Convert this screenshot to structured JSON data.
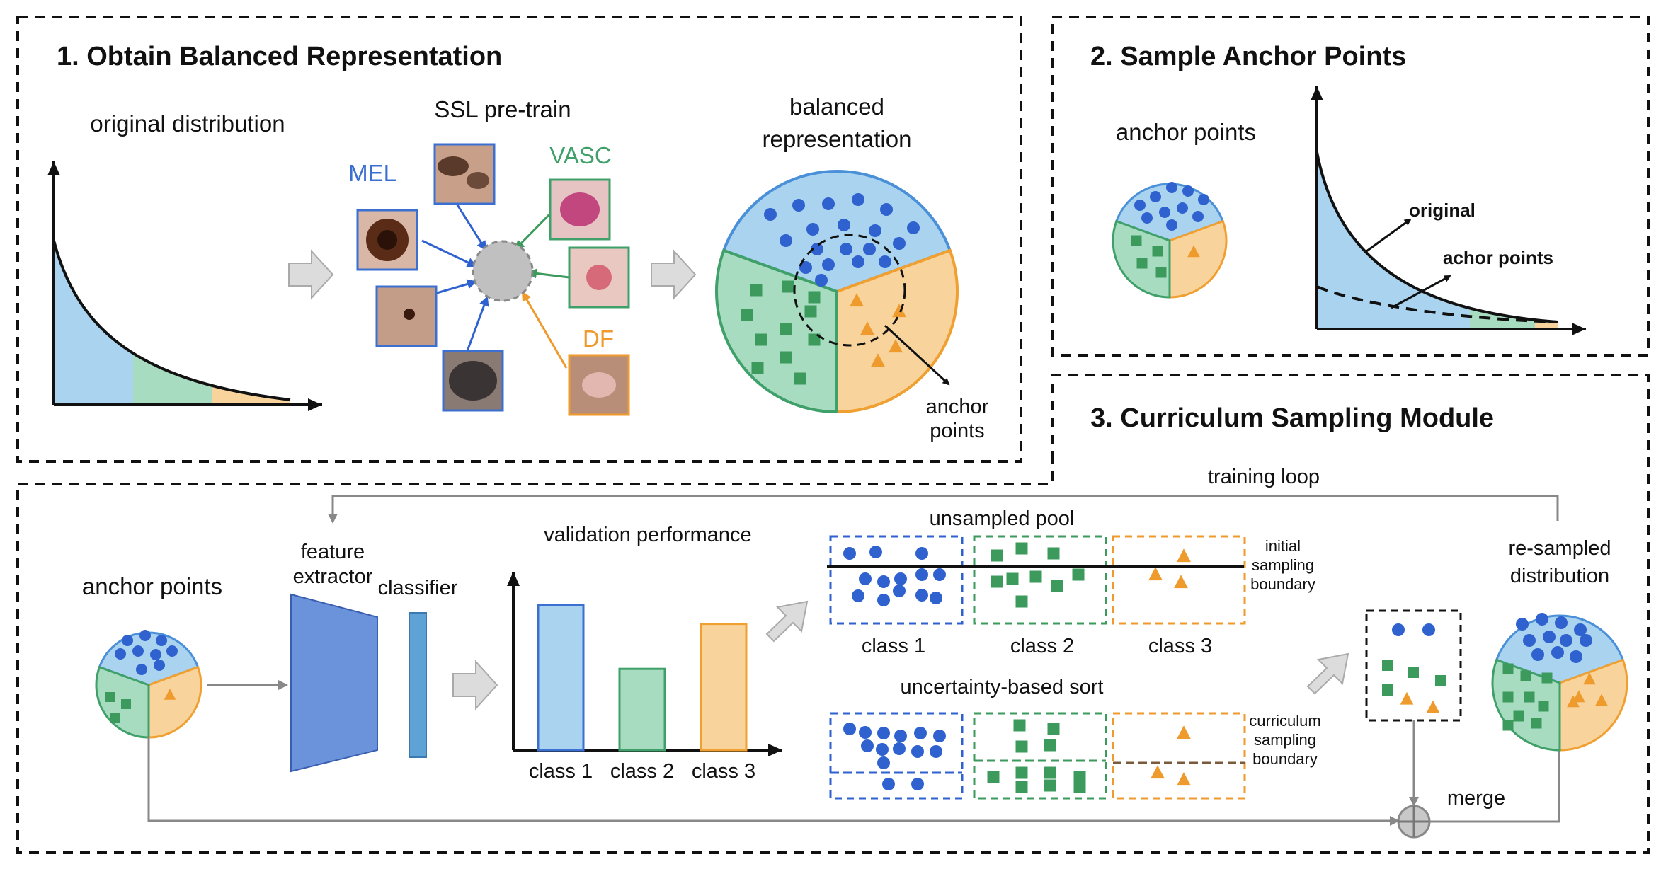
{
  "panel1": {
    "title": "1. Obtain Balanced Representation",
    "original_distribution": "original distribution",
    "ssl_pretrain": "SSL pre-train",
    "class_mel": "MEL",
    "class_vasc": "VASC",
    "class_df": "DF",
    "balanced_line1": "balanced",
    "balanced_line2": "representation",
    "anchor_line1": "anchor",
    "anchor_line2": "points"
  },
  "panel2": {
    "title": "2. Sample Anchor Points",
    "anchor_points": "anchor points",
    "original": "original",
    "achor_points": "achor points"
  },
  "panel3": {
    "title": "3. Curriculum Sampling Module",
    "training_loop": "training loop",
    "anchor_points": "anchor points",
    "feature_line1": "feature",
    "feature_line2": "extractor",
    "classifier": "classifier",
    "validation_performance": "validation performance",
    "bar_chart": {
      "categories": [
        "class 1",
        "class 2",
        "class 3"
      ],
      "values": [
        100,
        56,
        87
      ],
      "colors": [
        "#a9d3ee",
        "#a8dcc0",
        "#f8d39c"
      ],
      "edge_colors": [
        "#3b6fd0",
        "#3fa06a",
        "#f0a030"
      ]
    },
    "unsampled_pool": "unsampled pool",
    "initial_line1": "initial",
    "initial_line2": "sampling",
    "initial_line3": "boundary",
    "pool_labels": [
      "class 1",
      "class 2",
      "class 3"
    ],
    "uncertainty_sort": "uncertainty-based sort",
    "curr_line1": "curriculum",
    "curr_line2": "sampling",
    "curr_line3": "boundary",
    "merge": "merge",
    "resampled_line1": "re-sampled",
    "resampled_line2": "distribution"
  },
  "colors": {
    "blue_dot": "#2f62cf",
    "green_square": "#3c9a5c",
    "orange_triangle": "#ef9a2c",
    "blue_fill": "#a9d3ee",
    "green_fill": "#a8dcc0",
    "orange_fill": "#f8d39c",
    "extractor": "#6b93dc",
    "classifier": "#5fa3d6"
  }
}
